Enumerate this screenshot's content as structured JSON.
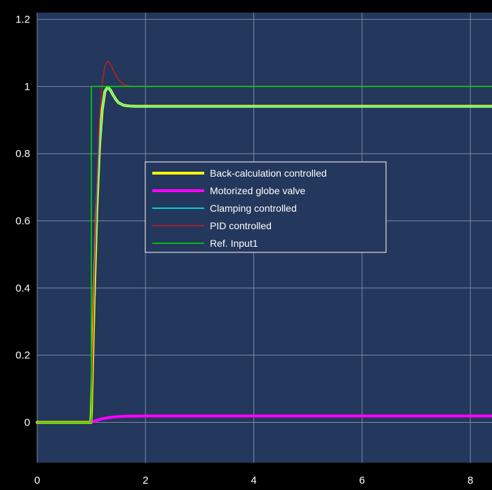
{
  "chart_data": {
    "type": "line",
    "title": "",
    "xlabel": "",
    "ylabel": "",
    "xlim": [
      0,
      8.4
    ],
    "ylim": [
      -0.12,
      1.22
    ],
    "x_ticks": [
      0,
      2,
      4,
      6,
      8
    ],
    "y_ticks": [
      0,
      0.2,
      0.4,
      0.6,
      0.8,
      1,
      1.2
    ],
    "x_tick_labels": [
      "0",
      "2",
      "4",
      "6",
      "8"
    ],
    "y_tick_labels": [
      "0",
      "0.2",
      "0.4",
      "0.6",
      "0.8",
      "1",
      "1.2"
    ],
    "grid": true,
    "legend_position": "center-left",
    "colors": {
      "background": "#000000",
      "plot_area": "#24375c",
      "grid": "#7f8aa6",
      "text": "#ffffff"
    },
    "series": [
      {
        "name": "Back-calculation controlled",
        "color": "#ffff00",
        "line_width": 4,
        "x": [
          0,
          0.99,
          1.0,
          1.05,
          1.1,
          1.15,
          1.2,
          1.25,
          1.3,
          1.35,
          1.4,
          1.45,
          1.5,
          1.6,
          1.7,
          1.8,
          2.0,
          8.4
        ],
        "y": [
          0,
          0,
          0.03,
          0.36,
          0.63,
          0.82,
          0.93,
          0.985,
          0.998,
          0.99,
          0.975,
          0.962,
          0.952,
          0.944,
          0.942,
          0.941,
          0.941,
          0.941
        ]
      },
      {
        "name": "Motorized globe valve",
        "color": "#ff00ff",
        "line_width": 4,
        "x": [
          0,
          0.99,
          1.0,
          1.1,
          1.2,
          1.4,
          1.6,
          2.0,
          3.0,
          8.4
        ],
        "y": [
          0,
          0,
          0.0,
          0.006,
          0.011,
          0.016,
          0.018,
          0.019,
          0.019,
          0.019
        ]
      },
      {
        "name": "Clamping controlled",
        "color": "#00ffff",
        "line_width": 1.5,
        "x": [
          0,
          0.99,
          1.0,
          1.05,
          1.1,
          1.15,
          1.2,
          1.25,
          1.3,
          1.35,
          1.4,
          1.45,
          1.5,
          1.6,
          1.7,
          1.8,
          2.0,
          8.4
        ],
        "y": [
          0,
          0,
          0.03,
          0.36,
          0.63,
          0.82,
          0.93,
          0.985,
          0.998,
          0.99,
          0.975,
          0.962,
          0.952,
          0.944,
          0.942,
          0.941,
          0.941,
          0.941
        ]
      },
      {
        "name": "PID controlled",
        "color": "#c81e1e",
        "line_width": 1.5,
        "x": [
          0,
          0.99,
          1.0,
          1.05,
          1.1,
          1.15,
          1.2,
          1.25,
          1.3,
          1.35,
          1.4,
          1.45,
          1.5,
          1.6,
          1.7,
          1.8,
          2.0,
          8.4
        ],
        "y": [
          0,
          0,
          0.03,
          0.4,
          0.7,
          0.9,
          1.01,
          1.06,
          1.075,
          1.068,
          1.05,
          1.035,
          1.02,
          1.006,
          1.001,
          1.0,
          1.0,
          1.0
        ]
      },
      {
        "name": "Ref. Input1",
        "color": "#00e000",
        "line_width": 1.5,
        "x": [
          0,
          1.0,
          1.0,
          8.4
        ],
        "y": [
          0,
          0,
          1,
          1
        ]
      }
    ]
  }
}
